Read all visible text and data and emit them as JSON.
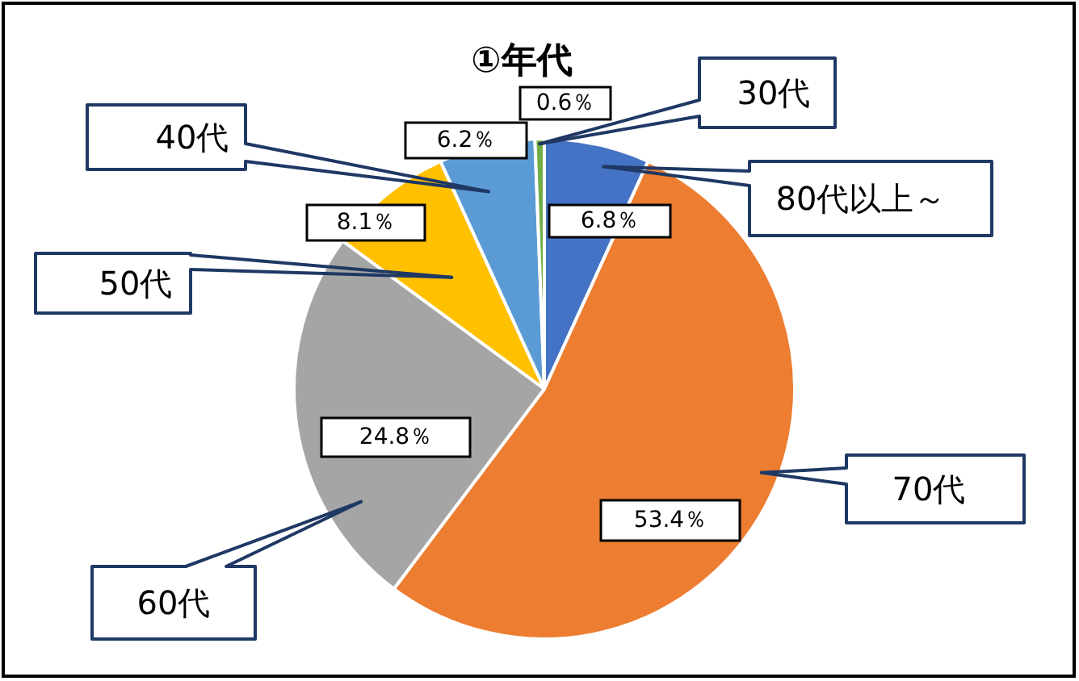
{
  "chart_data": {
    "type": "pie",
    "title": "①年代",
    "categories": [
      "80代以上～",
      "70代",
      "60代",
      "50代",
      "40代",
      "30代"
    ],
    "values": [
      6.8,
      53.4,
      24.8,
      8.1,
      6.2,
      0.6
    ],
    "colors": [
      "#4472c4",
      "#ed7d31",
      "#a5a5a5",
      "#ffc000",
      "#5b9bd5",
      "#70ad47"
    ],
    "value_labels": [
      "6.8％",
      "53.4％",
      "24.8％",
      "8.1％",
      "6.2％",
      "0.6％"
    ]
  }
}
